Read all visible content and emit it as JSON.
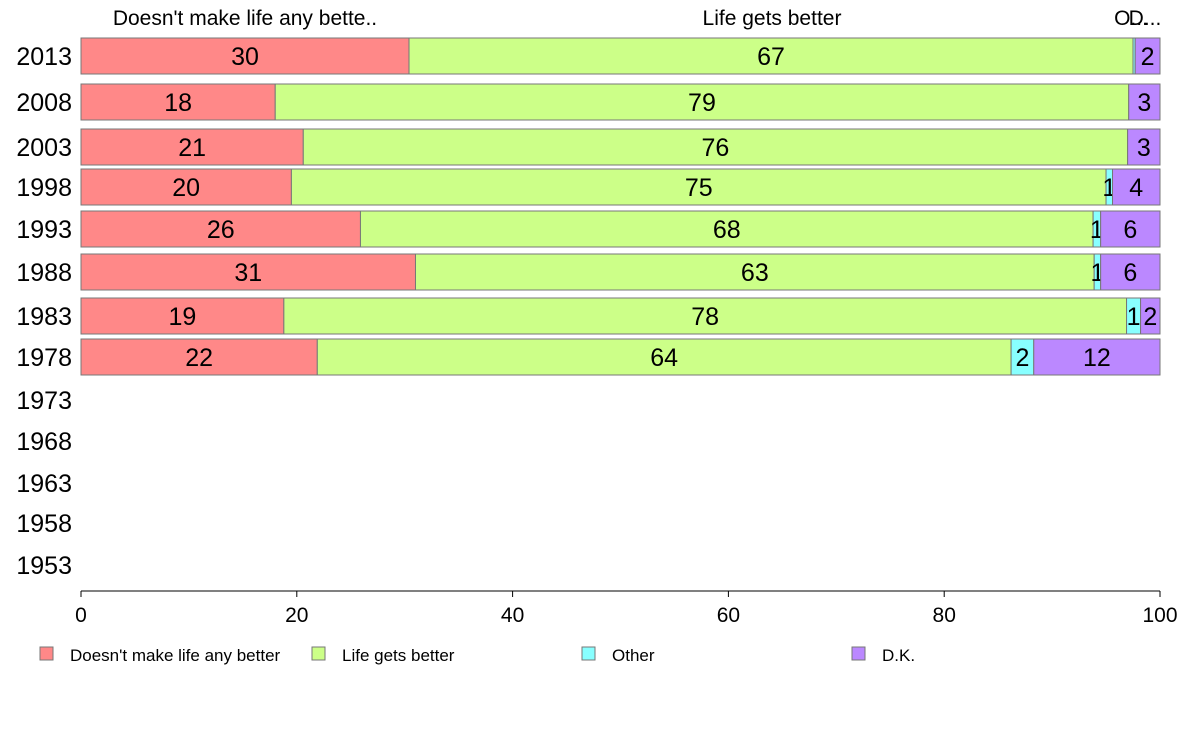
{
  "chart_data": {
    "type": "bar",
    "orientation": "horizontal",
    "stacked": true,
    "title": "",
    "xlabel": "",
    "ylabel": "",
    "xlim": [
      0,
      100
    ],
    "x_ticks": [
      "0",
      "20",
      "40",
      "60",
      "80",
      "100"
    ],
    "grid": false,
    "legend_position": "bottom",
    "categories": [
      "2013",
      "2008",
      "2003",
      "1998",
      "1993",
      "1988",
      "1983",
      "1978",
      "1973",
      "1968",
      "1963",
      "1958",
      "1953"
    ],
    "series": [
      {
        "name": "Doesn't make life any better",
        "color": "#ff8888",
        "values": [
          30.4,
          18.0,
          20.6,
          19.5,
          25.9,
          31.0,
          18.8,
          21.9,
          null,
          null,
          null,
          null,
          null
        ],
        "labels": [
          "30",
          "18",
          "21",
          "20",
          "26",
          "31",
          "19",
          "22",
          "",
          "",
          "",
          "",
          ""
        ]
      },
      {
        "name": "Life gets better",
        "color": "#ccff88",
        "values": [
          67.1,
          79.1,
          76.4,
          75.5,
          67.9,
          62.9,
          78.1,
          64.3,
          null,
          null,
          null,
          null,
          null
        ],
        "labels": [
          "67",
          "79",
          "76",
          "75",
          "68",
          "63",
          "78",
          "64",
          "",
          "",
          "",
          "",
          ""
        ]
      },
      {
        "name": "Other",
        "color": "#88ffff",
        "values": [
          0.2,
          0.0,
          0.0,
          0.6,
          0.7,
          0.6,
          1.3,
          2.1,
          null,
          null,
          null,
          null,
          null
        ],
        "labels": [
          "",
          "",
          "",
          "1",
          "1",
          "1",
          "1",
          "2",
          "",
          "",
          "",
          "",
          ""
        ]
      },
      {
        "name": "D.K.",
        "color": "#bb88ff",
        "values": [
          2.3,
          2.9,
          3.0,
          4.4,
          5.5,
          5.5,
          1.8,
          11.7,
          null,
          null,
          null,
          null,
          null
        ],
        "labels": [
          "2",
          "3",
          "3",
          "4",
          "6",
          "6",
          "2",
          "12",
          "",
          "",
          "",
          "",
          ""
        ]
      }
    ],
    "top_labels": [
      "Doesn't make life any bette..",
      "Life gets better",
      "O...",
      "D..."
    ],
    "legend": [
      "Doesn't make life any better",
      "Life gets better",
      "Other",
      "D.K."
    ]
  }
}
